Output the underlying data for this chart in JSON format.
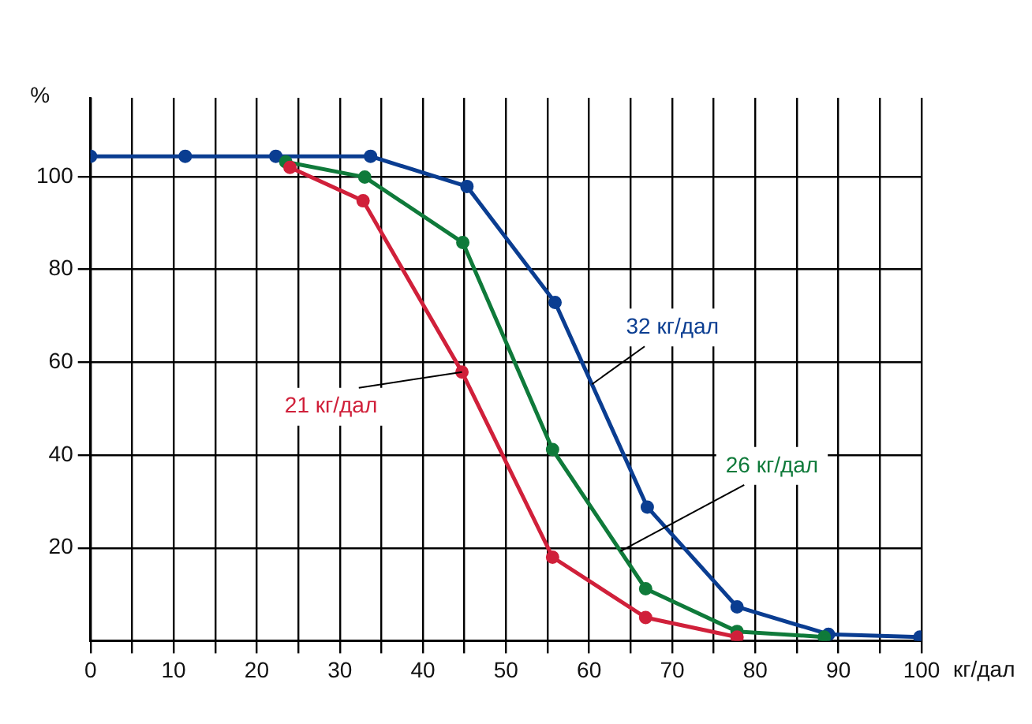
{
  "chart_data": {
    "type": "line",
    "xlabel": "кг/дал",
    "ylabel": "%",
    "xlim": [
      0,
      100
    ],
    "ylim": [
      0,
      117
    ],
    "xticks": [
      0,
      {
        "value": 5,
        "label": null
      },
      10,
      {
        "value": 15,
        "label": null
      },
      20,
      {
        "value": 25,
        "label": null
      },
      30,
      {
        "value": 35,
        "label": null
      },
      40,
      {
        "value": 45,
        "label": null
      },
      50,
      {
        "value": 55,
        "label": null
      },
      60,
      {
        "value": 65,
        "label": null
      },
      70,
      {
        "value": 75,
        "label": null
      },
      80,
      {
        "value": 85,
        "label": null
      },
      90,
      {
        "value": 95,
        "label": null
      },
      100
    ],
    "yticks": [
      20,
      40,
      60,
      80,
      100
    ],
    "grid": true,
    "marker": "circle",
    "line_style": "solid",
    "legend": false,
    "series": [
      {
        "name": "32 кг/дал",
        "color": "#0a3d91",
        "x": [
          0,
          11.4,
          22.3,
          33.7,
          45.3,
          55.9,
          67.0,
          77.8,
          88.8,
          99.8
        ],
        "values": [
          104.4,
          104.4,
          104.4,
          104.4,
          97.9,
          72.9,
          28.8,
          7.3,
          1.4,
          0.8
        ]
      },
      {
        "name": "26 кг/дал",
        "color": "#0f7a3a",
        "x": [
          23.5,
          33.0,
          44.8,
          55.6,
          66.8,
          77.8,
          88.3
        ],
        "values": [
          103.2,
          99.9,
          85.8,
          41.2,
          11.2,
          2.0,
          0.8
        ]
      },
      {
        "name": "21 кг/дал",
        "color": "#d0203a",
        "x": [
          24.0,
          32.8,
          44.7,
          55.6,
          66.8,
          77.8
        ],
        "values": [
          102.0,
          94.8,
          57.9,
          18.0,
          5.0,
          0.8
        ]
      }
    ]
  }
}
